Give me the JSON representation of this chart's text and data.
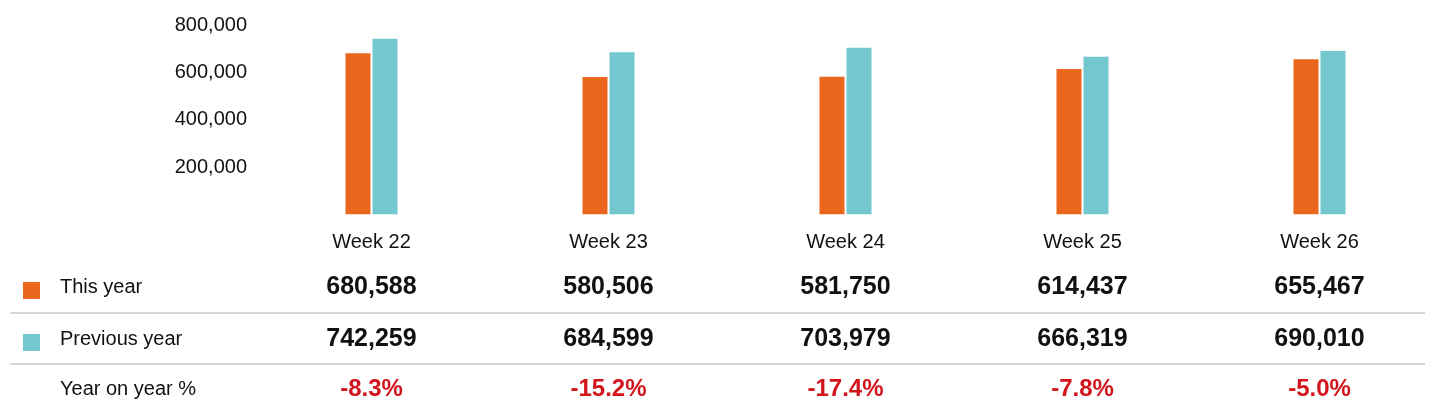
{
  "chart_data": {
    "type": "bar",
    "categories": [
      "Week 22",
      "Week 23",
      "Week 24",
      "Week 25",
      "Week 26"
    ],
    "series": [
      {
        "name": "This year",
        "color": "#ec671e",
        "values": [
          680588,
          580506,
          581750,
          614437,
          655467
        ],
        "value_labels": [
          "680,588",
          "580,506",
          "581,750",
          "614,437",
          "655,467"
        ]
      },
      {
        "name": "Previous year",
        "color": "#73c7ce",
        "values": [
          742259,
          684599,
          703979,
          666319,
          690010
        ],
        "value_labels": [
          "742,259",
          "684,599",
          "703,979",
          "666,319",
          "690,010"
        ]
      }
    ],
    "ylim": [
      0,
      800000
    ],
    "yticks": [
      {
        "value": 200000,
        "label": "200,000"
      },
      {
        "value": 400000,
        "label": "400,000"
      },
      {
        "value": 600000,
        "label": "600,000"
      },
      {
        "value": 800000,
        "label": "800,000"
      }
    ],
    "legend": "bottom left",
    "annotations": [
      "Year on year %",
      "-8.3%",
      "-15.2%",
      "-17.4%",
      "-7.8%",
      "-5.0%"
    ]
  }
}
